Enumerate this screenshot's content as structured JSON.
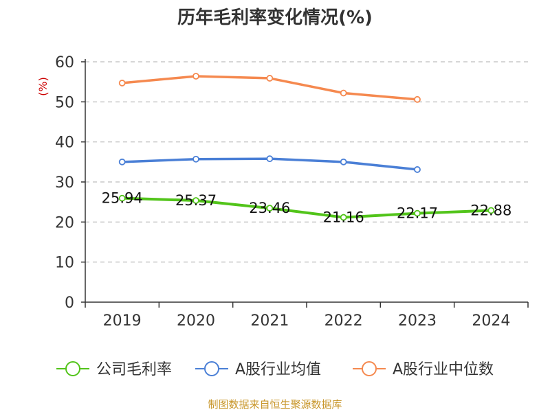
{
  "chart_data": {
    "type": "line",
    "title": "历年毛利率变化情况(%)",
    "ylabel": "(%)",
    "xlabel": "",
    "categories": [
      "2019",
      "2020",
      "2021",
      "2022",
      "2023",
      "2024"
    ],
    "ylim": [
      0,
      60
    ],
    "yticks": [
      0,
      10,
      20,
      30,
      40,
      50,
      60
    ],
    "grid": "horizontal-dashed",
    "legend_position": "bottom",
    "series": [
      {
        "name": "公司毛利率",
        "color": "#52c41a",
        "values": [
          25.94,
          25.37,
          23.46,
          21.16,
          22.17,
          22.88
        ],
        "labels": [
          "25.94",
          "25.37",
          "23.46",
          "21.16",
          "22.17",
          "22.88"
        ]
      },
      {
        "name": "A股行业均值",
        "color": "#4a7fd6",
        "values": [
          35.0,
          35.7,
          35.8,
          35.0,
          33.1,
          null
        ]
      },
      {
        "name": "A股行业中位数",
        "color": "#f5894f",
        "values": [
          54.7,
          56.4,
          55.9,
          52.2,
          50.6,
          null
        ]
      }
    ]
  },
  "footer": {
    "source": "制图数据来自恒生聚源数据库"
  }
}
